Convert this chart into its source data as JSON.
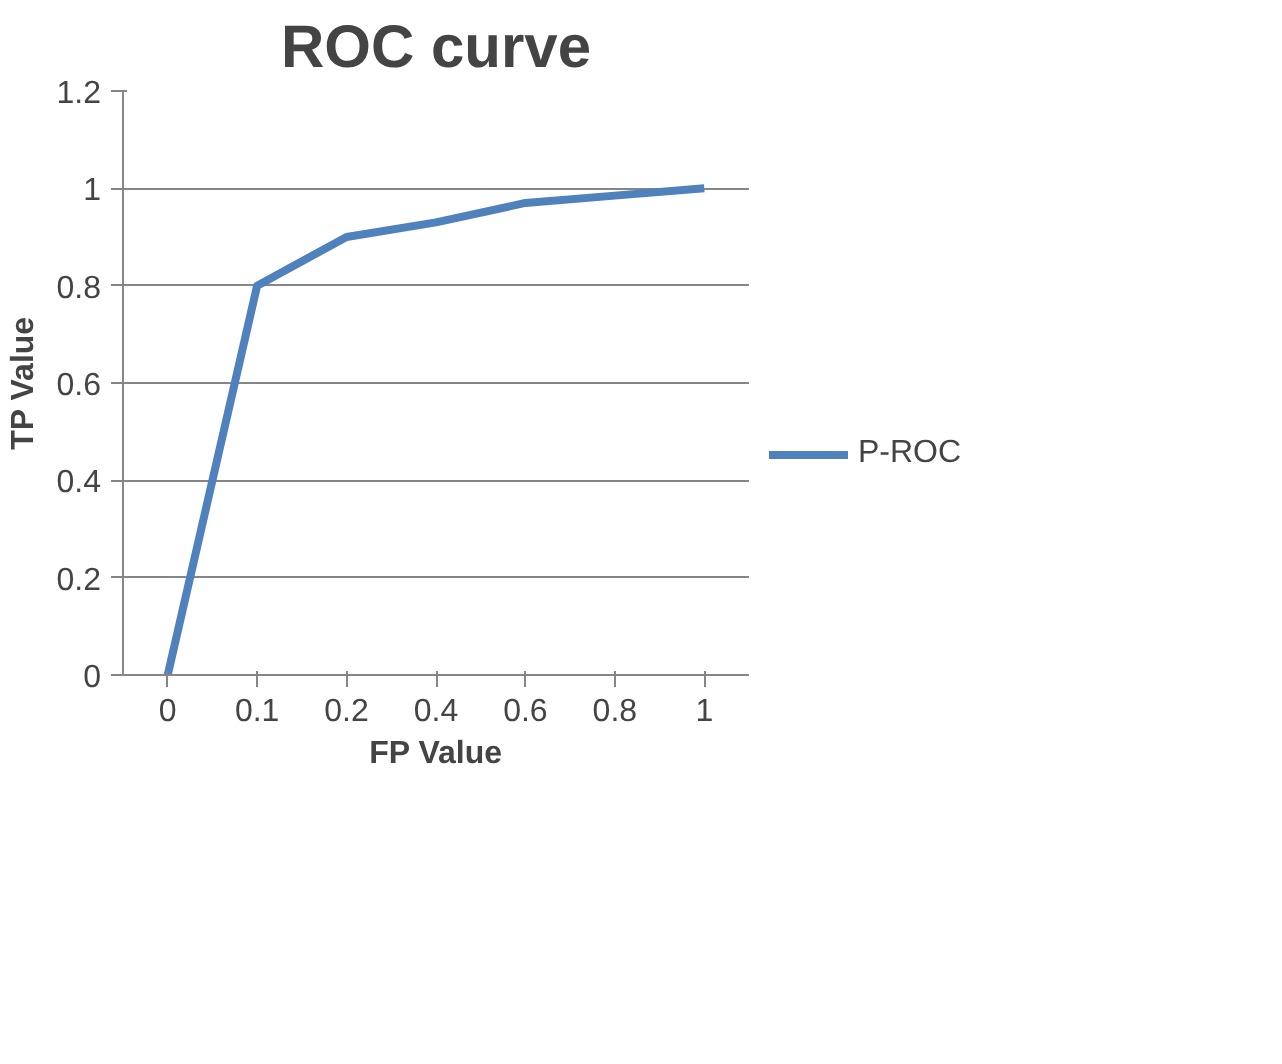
{
  "chart_data": {
    "type": "line",
    "title": "ROC curve",
    "xlabel": "FP Value",
    "ylabel": "TP Value",
    "categories": [
      "0",
      "0.1",
      "0.2",
      "0.4",
      "0.6",
      "0.8",
      "1"
    ],
    "series": [
      {
        "name": "P-ROC",
        "color": "#4f81bd",
        "values": [
          0,
          0.8,
          0.9,
          0.93,
          0.97,
          0.985,
          1
        ]
      }
    ],
    "ylim": [
      0,
      1.2
    ],
    "yticks": [
      0,
      0.2,
      0.4,
      0.6,
      0.8,
      1,
      1.2
    ],
    "grid": "y",
    "legend": "right",
    "marker": "none",
    "line_style": "solid"
  }
}
